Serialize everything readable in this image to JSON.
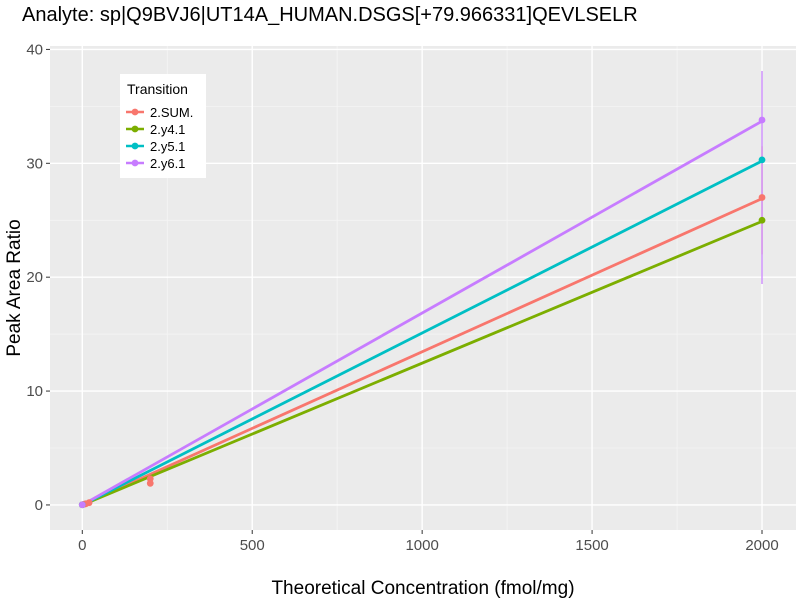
{
  "chart_data": {
    "type": "line",
    "title": "Analyte: sp|Q9BVJ6|UT14A_HUMAN.DSGS[+79.966331]QEVLSELR",
    "xlabel": "Theoretical Concentration (fmol/mg)",
    "ylabel": "Peak Area Ratio",
    "xlim": [
      -95,
      2100
    ],
    "ylim": [
      -2.2,
      40.3
    ],
    "x_ticks": [
      0,
      500,
      1000,
      1500,
      2000
    ],
    "y_ticks": [
      0,
      10,
      20,
      30,
      40
    ],
    "grid": true,
    "legend": {
      "title": "Transition",
      "placement": "top-left"
    },
    "series": [
      {
        "name": "2.SUM.",
        "color": "#F8766D",
        "fit_line": [
          [
            0,
            0
          ],
          [
            2000,
            26.9
          ]
        ],
        "points": [
          {
            "x": 0,
            "y": 0.02
          },
          {
            "x": 5,
            "y": 0.06
          },
          {
            "x": 10,
            "y": 0.1
          },
          {
            "x": 20,
            "y": 0.2
          },
          {
            "x": 200,
            "y": 1.9
          },
          {
            "x": 200,
            "y": 2.3
          },
          {
            "x": 2000,
            "y": 27.0
          }
        ],
        "error_bars": [
          {
            "x": 2000,
            "low": 22.0,
            "high": 31.5
          }
        ]
      },
      {
        "name": "2.y4.1",
        "color": "#7CAE00",
        "fit_line": [
          [
            0,
            0
          ],
          [
            2000,
            24.9
          ]
        ],
        "points": [
          {
            "x": 0,
            "y": 0.02
          },
          {
            "x": 2000,
            "y": 25.0
          }
        ],
        "error_bars": []
      },
      {
        "name": "2.y5.1",
        "color": "#00BFC4",
        "fit_line": [
          [
            0,
            0
          ],
          [
            2000,
            30.2
          ]
        ],
        "points": [
          {
            "x": 0,
            "y": 0.02
          },
          {
            "x": 2000,
            "y": 30.3
          }
        ],
        "error_bars": []
      },
      {
        "name": "2.y6.1",
        "color": "#C77CFF",
        "fit_line": [
          [
            0,
            0
          ],
          [
            2000,
            33.7
          ]
        ],
        "points": [
          {
            "x": 0,
            "y": 0.02
          },
          {
            "x": 2000,
            "y": 33.8
          }
        ],
        "error_bars": [
          {
            "x": 2000,
            "low": 19.4,
            "high": 38.1
          }
        ]
      }
    ]
  }
}
